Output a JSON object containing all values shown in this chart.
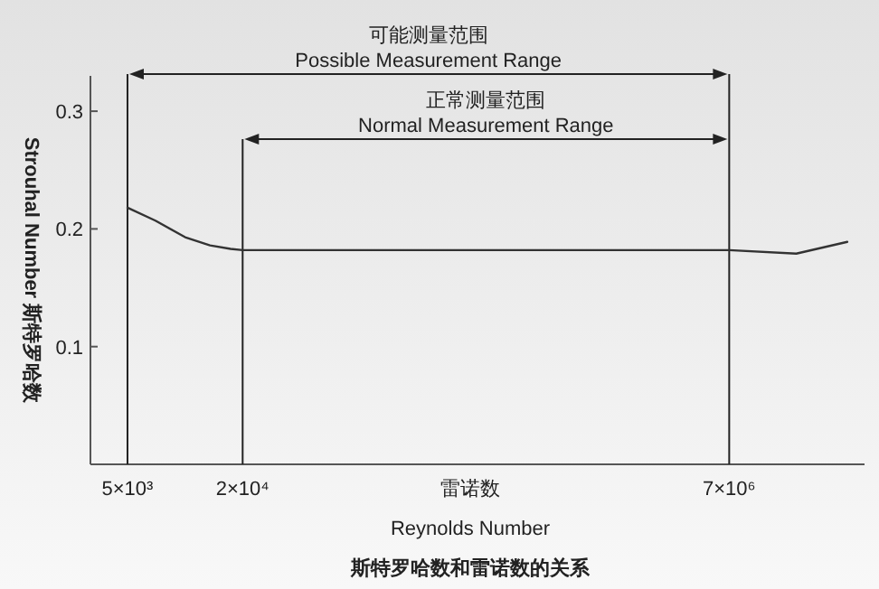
{
  "chart_data": {
    "type": "line",
    "title": "斯特罗哈数和雷诺数的关系",
    "xlabel": "雷诺数\nReynolds Number",
    "ylabel": "Strouhal Number 斯特罗哈数",
    "x": [
      5000,
      7000,
      10000,
      13500,
      17300,
      20000,
      100000,
      1000000,
      7000000,
      15700000,
      29000000
    ],
    "series": [
      {
        "color": "#333333",
        "values": [
          0.218,
          0.207,
          0.193,
          0.186,
          0.183,
          0.182,
          0.182,
          0.182,
          0.182,
          0.179,
          0.189
        ]
      }
    ],
    "log": "x",
    "xlim": [
      3200,
      35700000
    ],
    "xticks": [
      {
        "value": 5000,
        "label": "5×10³"
      },
      {
        "value": 20000,
        "label": "2×10⁴"
      },
      {
        "value": 7000000,
        "label": "7×10⁶"
      }
    ],
    "ylim": [
      0,
      0.33
    ],
    "yticks": [
      0.1,
      0.2,
      0.3
    ],
    "ref_lines": [
      {
        "axis": "x",
        "value": 5000,
        "color": "#222222"
      },
      {
        "axis": "x",
        "value": 20000,
        "color": "#222222"
      },
      {
        "axis": "x",
        "value": 7000000,
        "color": "#222222"
      }
    ],
    "annotations": [
      "可能测量范围\nPossible Measurement Range",
      "正常测量范围\nNormal Measurement Range"
    ]
  }
}
